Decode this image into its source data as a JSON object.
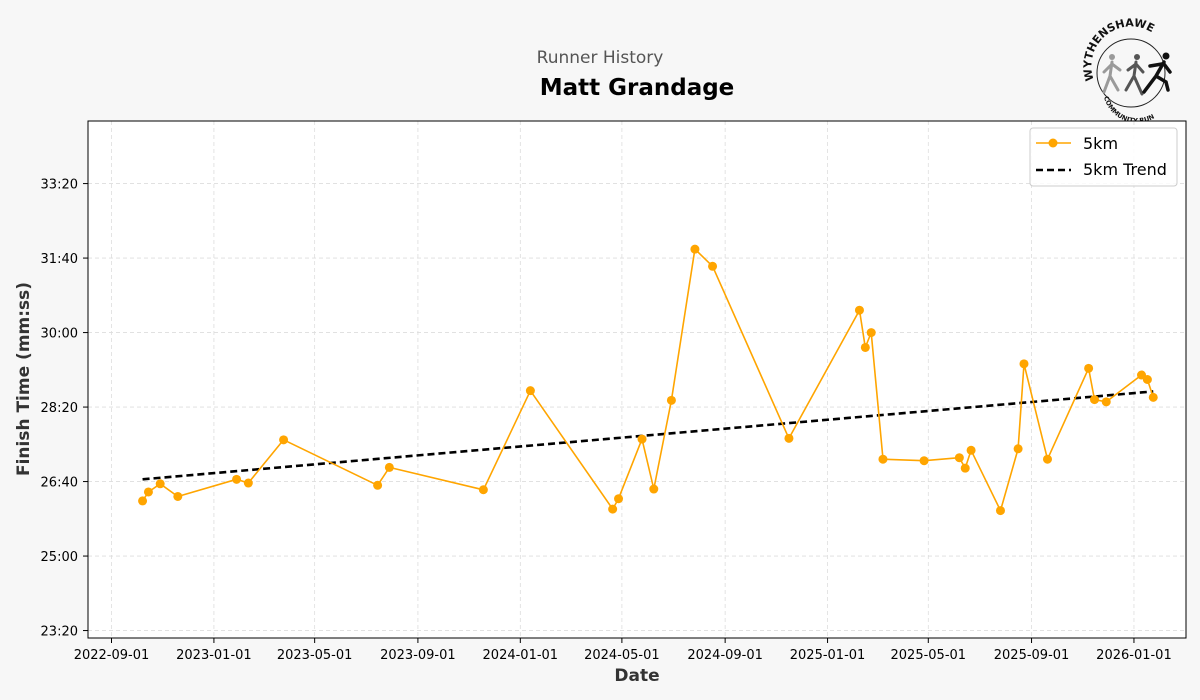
{
  "header": {
    "subtitle": "Runner History",
    "title": "Matt Grandage"
  },
  "logo": {
    "top_text": "WYTHENSHAWE",
    "bottom_text": "COMMUNITY RUN"
  },
  "chart_data": {
    "type": "line",
    "xlabel": "Date",
    "ylabel": "Finish Time (mm:ss)",
    "x_ticks": [
      "2022-09-01",
      "2023-01-01",
      "2023-05-01",
      "2023-09-01",
      "2024-01-01",
      "2024-05-01",
      "2024-09-01",
      "2025-01-01",
      "2025-05-01",
      "2025-09-01",
      "2026-01-01"
    ],
    "y_ticks": [
      "23:20",
      "25:00",
      "26:40",
      "28:20",
      "30:00",
      "31:40",
      "33:20"
    ],
    "xlim": [
      "2022-08-04",
      "2026-03-04"
    ],
    "ylim_seconds": [
      1390,
      2084
    ],
    "grid": true,
    "legend_position": "top-right",
    "colors": {
      "series": "#FFA500",
      "trend": "#000000",
      "grid": "#dddddd"
    },
    "series": [
      {
        "name": "5km",
        "style": "line-with-markers",
        "points": [
          {
            "date": "2022-10-08",
            "time": "26:14"
          },
          {
            "date": "2022-10-15",
            "time": "26:26"
          },
          {
            "date": "2022-10-29",
            "time": "26:37"
          },
          {
            "date": "2022-11-19",
            "time": "26:20"
          },
          {
            "date": "2023-01-28",
            "time": "26:43"
          },
          {
            "date": "2023-02-11",
            "time": "26:38"
          },
          {
            "date": "2023-03-25",
            "time": "27:36"
          },
          {
            "date": "2023-07-15",
            "time": "26:35"
          },
          {
            "date": "2023-07-29",
            "time": "26:59"
          },
          {
            "date": "2023-11-18",
            "time": "26:29"
          },
          {
            "date": "2024-01-13",
            "time": "28:42"
          },
          {
            "date": "2024-04-20",
            "time": "26:03"
          },
          {
            "date": "2024-04-27",
            "time": "26:17"
          },
          {
            "date": "2024-05-25",
            "time": "27:37"
          },
          {
            "date": "2024-06-08",
            "time": "26:30"
          },
          {
            "date": "2024-06-29",
            "time": "28:29"
          },
          {
            "date": "2024-07-27",
            "time": "31:52"
          },
          {
            "date": "2024-08-17",
            "time": "31:29"
          },
          {
            "date": "2024-11-16",
            "time": "27:38"
          },
          {
            "date": "2025-02-08",
            "time": "30:30"
          },
          {
            "date": "2025-02-15",
            "time": "29:40"
          },
          {
            "date": "2025-02-22",
            "time": "30:00"
          },
          {
            "date": "2025-03-08",
            "time": "27:10"
          },
          {
            "date": "2025-04-26",
            "time": "27:08"
          },
          {
            "date": "2025-06-07",
            "time": "27:12"
          },
          {
            "date": "2025-06-14",
            "time": "26:58"
          },
          {
            "date": "2025-06-21",
            "time": "27:22"
          },
          {
            "date": "2025-07-26",
            "time": "26:01"
          },
          {
            "date": "2025-08-16",
            "time": "27:24"
          },
          {
            "date": "2025-08-23",
            "time": "29:18"
          },
          {
            "date": "2025-09-20",
            "time": "27:10"
          },
          {
            "date": "2025-11-08",
            "time": "29:12"
          },
          {
            "date": "2025-11-15",
            "time": "28:30"
          },
          {
            "date": "2025-11-29",
            "time": "28:27"
          },
          {
            "date": "2026-01-10",
            "time": "29:03"
          },
          {
            "date": "2026-01-17",
            "time": "28:57"
          },
          {
            "date": "2026-01-24",
            "time": "28:33"
          }
        ]
      },
      {
        "name": "5km Trend",
        "style": "dashed",
        "points": [
          {
            "date": "2022-10-08",
            "time": "26:43"
          },
          {
            "date": "2026-01-24",
            "time": "28:41"
          }
        ]
      }
    ]
  }
}
